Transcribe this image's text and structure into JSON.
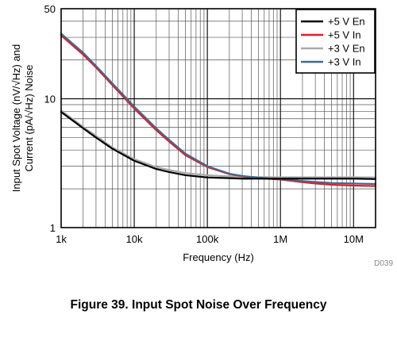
{
  "chart_data": {
    "type": "line",
    "caption": "Figure 39. Input Spot Noise Over Frequency",
    "figure_id": "D039",
    "xlabel": "Frequency (Hz)",
    "ylabel_line1": "Input Spot Voltage (nV/√Hz) and",
    "ylabel_line2": "Current (pA/√Hz) Noise",
    "xscale": "log",
    "yscale": "log",
    "xlim": [
      1000,
      20000000
    ],
    "ylim": [
      1,
      50
    ],
    "x_ticks": [
      {
        "value": 1000,
        "label": "1k"
      },
      {
        "value": 10000,
        "label": "10k"
      },
      {
        "value": 100000,
        "label": "100k"
      },
      {
        "value": 1000000,
        "label": "1M"
      },
      {
        "value": 10000000,
        "label": "10M"
      }
    ],
    "y_ticks": [
      {
        "value": 1,
        "label": "1"
      },
      {
        "value": 10,
        "label": "10"
      },
      {
        "value": 50,
        "label": "50"
      }
    ],
    "grid": true,
    "legend_position": "top-right",
    "series": [
      {
        "name": "+5 V En",
        "color": "#000000",
        "x": [
          1000,
          2000,
          3000,
          5000,
          10000,
          20000,
          30000,
          50000,
          100000,
          200000,
          300000,
          500000,
          1000000,
          2000000,
          3000000,
          5000000,
          10000000,
          20000000
        ],
        "y": [
          7.9,
          5.9,
          5.0,
          4.1,
          3.3,
          2.85,
          2.7,
          2.55,
          2.45,
          2.42,
          2.4,
          2.4,
          2.4,
          2.4,
          2.4,
          2.4,
          2.4,
          2.38
        ]
      },
      {
        "name": "+5 V In",
        "color": "#e8192c",
        "x": [
          1000,
          2000,
          3000,
          5000,
          10000,
          20000,
          30000,
          50000,
          100000,
          200000,
          300000,
          500000,
          1000000,
          2000000,
          3000000,
          5000000,
          10000000,
          20000000
        ],
        "y": [
          31,
          22,
          17.5,
          12.8,
          8.4,
          5.7,
          4.65,
          3.65,
          2.95,
          2.6,
          2.5,
          2.42,
          2.36,
          2.25,
          2.2,
          2.15,
          2.12,
          2.1
        ]
      },
      {
        "name": "+3 V En",
        "color": "#aaaaaa",
        "x": [
          1000,
          2000,
          3000,
          5000,
          10000,
          20000,
          30000,
          50000,
          100000,
          200000,
          300000,
          500000,
          1000000,
          2000000,
          3000000,
          5000000,
          10000000,
          20000000
        ],
        "y": [
          8.1,
          6.05,
          5.15,
          4.2,
          3.4,
          2.95,
          2.8,
          2.65,
          2.55,
          2.5,
          2.48,
          2.47,
          2.46,
          2.46,
          2.46,
          2.46,
          2.46,
          2.45
        ]
      },
      {
        "name": "+3 V In",
        "color": "#3a6d8c",
        "x": [
          1000,
          2000,
          3000,
          5000,
          10000,
          20000,
          30000,
          50000,
          100000,
          200000,
          300000,
          500000,
          1000000,
          2000000,
          3000000,
          5000000,
          10000000,
          20000000
        ],
        "y": [
          32,
          22.8,
          18,
          13.2,
          8.7,
          5.9,
          4.8,
          3.75,
          3.0,
          2.62,
          2.52,
          2.44,
          2.38,
          2.3,
          2.26,
          2.22,
          2.2,
          2.18
        ]
      }
    ]
  }
}
